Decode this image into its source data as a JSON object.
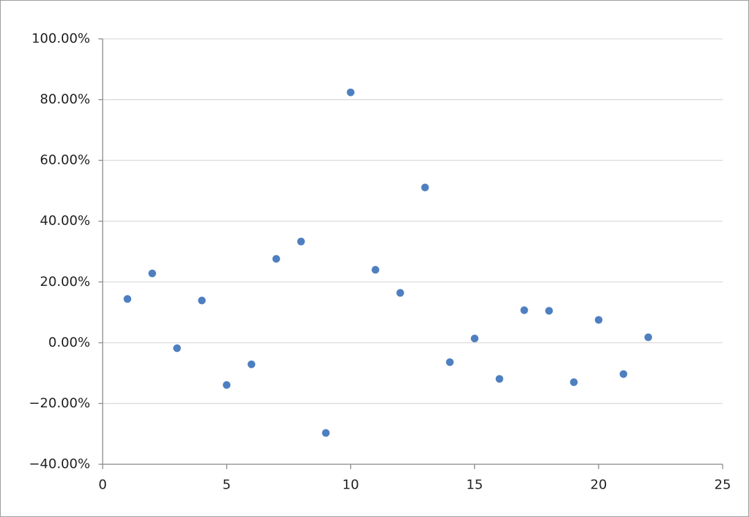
{
  "chart_data": {
    "type": "scatter",
    "x": [
      1,
      2,
      3,
      4,
      5,
      6,
      7,
      8,
      9,
      10,
      11,
      12,
      13,
      14,
      15,
      16,
      17,
      18,
      19,
      20,
      21,
      22
    ],
    "series": [
      {
        "color": "#4e7fc0",
        "values": [
          14.4,
          22.8,
          -1.8,
          13.9,
          -13.9,
          -7.1,
          27.6,
          33.3,
          -29.7,
          82.4,
          24.0,
          16.4,
          51.1,
          -6.4,
          1.4,
          -11.9,
          10.7,
          10.5,
          -13.0,
          7.5,
          -10.3,
          1.8
        ]
      }
    ],
    "xlim": [
      0,
      25
    ],
    "xticks": [
      0,
      5,
      10,
      15,
      20,
      25
    ],
    "ylim": [
      -40,
      100
    ],
    "yticks": [
      {
        "value": -40,
        "label": "−40.00%"
      },
      {
        "value": -20,
        "label": "−20.00%"
      },
      {
        "value": 0,
        "label": "0.00%"
      },
      {
        "value": 20,
        "label": "20.00%"
      },
      {
        "value": 40,
        "label": "40.00%"
      },
      {
        "value": 60,
        "label": "60.00%"
      },
      {
        "value": 80,
        "label": "80.00%"
      },
      {
        "value": 100,
        "label": "100.00%"
      }
    ],
    "grid": true
  }
}
